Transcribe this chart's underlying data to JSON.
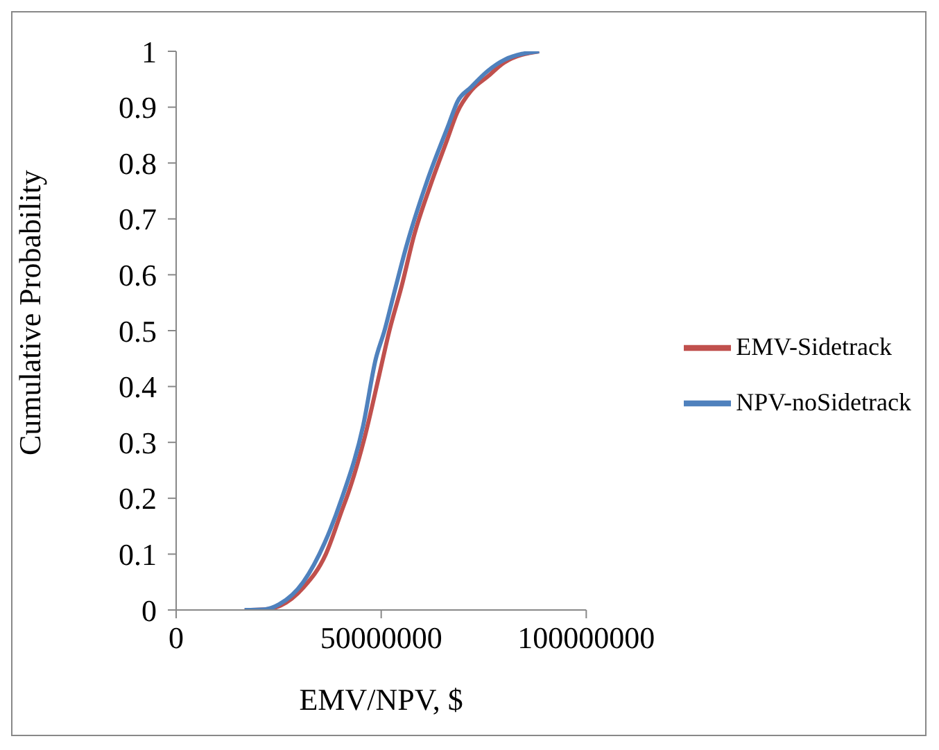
{
  "chart_data": {
    "type": "line",
    "xlabel": "EMV/NPV, $",
    "ylabel": "Cumulative Probability",
    "xlim": [
      0,
      100000000
    ],
    "xticks": [
      0,
      50000000,
      100000000
    ],
    "ylim": [
      0,
      1
    ],
    "yticks": [
      0,
      0.1,
      0.2,
      0.3,
      0.4,
      0.5,
      0.6,
      0.7,
      0.8,
      0.9,
      1
    ],
    "grid": false,
    "legend": "right",
    "marker": "none",
    "line_style": "solid",
    "series": [
      {
        "name": "EMV-Sidetrack",
        "color": "#c0504d",
        "x": [
          16700000,
          21500000,
          25500000,
          31000000,
          36500000,
          40500000,
          42000000,
          46000000,
          49500000,
          52000000,
          55000000,
          58000000,
          62000000,
          66000000,
          68500000,
          72000000,
          76000000,
          80000000,
          88500000
        ],
        "values": [
          0,
          0.001,
          0.008,
          0.04,
          0.1,
          0.18,
          0.21,
          0.31,
          0.42,
          0.5,
          0.58,
          0.67,
          0.76,
          0.84,
          0.89,
          0.93,
          0.955,
          0.98,
          1
        ]
      },
      {
        "name": "NPV-noSidetrack",
        "color": "#4f81bd",
        "x": [
          16700000,
          21500000,
          25100000,
          31000000,
          36200000,
          40400000,
          45600000,
          48700000,
          50800000,
          52900000,
          56100000,
          61300000,
          66500000,
          68600000,
          71800000,
          76000000,
          80100000,
          88500000
        ],
        "values": [
          0,
          0.001,
          0.01,
          0.05,
          0.12,
          0.2,
          0.33,
          0.45,
          0.5,
          0.56,
          0.65,
          0.77,
          0.87,
          0.91,
          0.935,
          0.965,
          0.985,
          1
        ]
      }
    ]
  }
}
